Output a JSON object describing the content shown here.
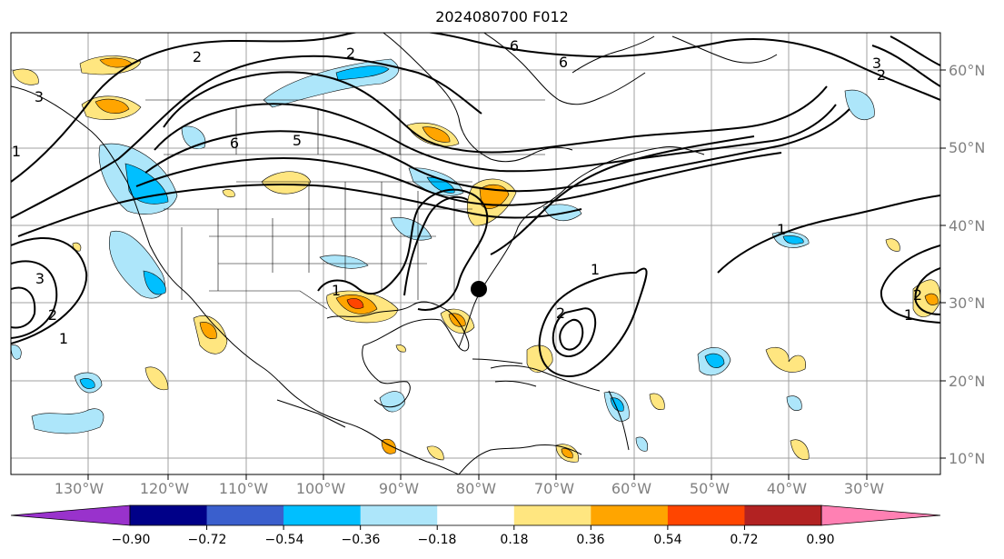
{
  "title": "2024080700 F012",
  "lat_labels": [
    "60°N",
    "50°N",
    "40°N",
    "30°N",
    "20°N",
    "10°N"
  ],
  "lon_labels": [
    "130°W",
    "120°W",
    "110°W",
    "100°W",
    "90°W",
    "80°W",
    "70°W",
    "60°W",
    "50°W",
    "40°W",
    "30°W"
  ],
  "contour_labels": [
    "2",
    "2",
    "6",
    "5",
    "6",
    "3",
    "1",
    "3",
    "2",
    "1",
    "1",
    "1",
    "2",
    "1",
    "3",
    "2",
    "1",
    "2",
    "6"
  ],
  "colorbar": {
    "ticks": [
      "−0.90",
      "−0.72",
      "−0.54",
      "−0.36",
      "−0.18",
      "0.18",
      "0.36",
      "0.54",
      "0.72",
      "0.90"
    ],
    "colors": [
      "#9932cc",
      "#000088",
      "#3a5fcd",
      "#00bfff",
      "#ade6fa",
      "#ffffff",
      "#ffe680",
      "#ffa500",
      "#ff4500",
      "#b22222",
      "#ff80b3"
    ]
  },
  "marker": {
    "lon": "80°W",
    "lat": "32°N"
  }
}
